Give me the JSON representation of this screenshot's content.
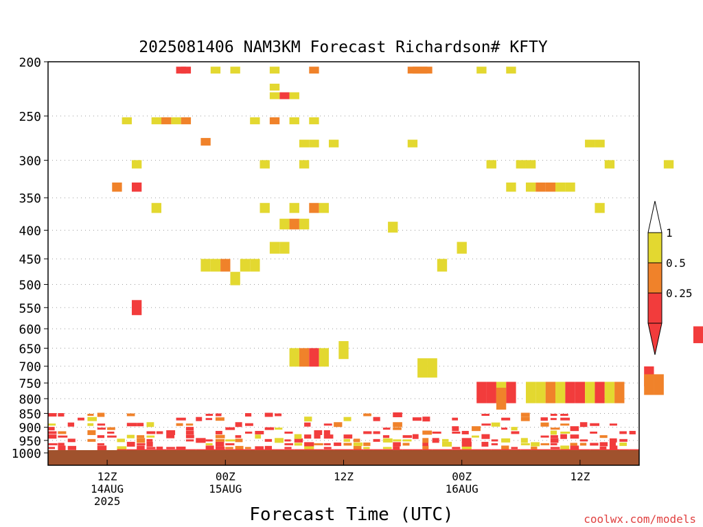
{
  "chart_data": {
    "type": "heatmap",
    "title": "2025081406 NAM3KM Forecast Richardson# KFTY",
    "xlabel": "Forecast Time (UTC)",
    "ylabel": "",
    "watermark": "coolwx.com/models",
    "y_axis": {
      "scale": "log-pressure",
      "range": [
        1000,
        200
      ],
      "tick_labels": [
        "200",
        "250",
        "300",
        "350",
        "400",
        "450",
        "500",
        "550",
        "600",
        "650",
        "700",
        "750",
        "800",
        "850",
        "900",
        "950",
        "1000"
      ],
      "grid": "dotted"
    },
    "x_axis": {
      "range": [
        "2025-08-14T06Z",
        "2025-08-16T18Z"
      ],
      "ticks": [
        {
          "hour": 12,
          "lines": [
            "12Z",
            "14AUG",
            "2025"
          ]
        },
        {
          "hour": 24,
          "lines": [
            "00Z",
            "15AUG"
          ]
        },
        {
          "hour": 36,
          "lines": [
            "12Z"
          ]
        },
        {
          "hour": 48,
          "lines": [
            "00Z",
            "16AUG"
          ]
        },
        {
          "hour": 60,
          "lines": [
            "12Z"
          ]
        }
      ]
    },
    "legend": {
      "placement": "right",
      "labels": [
        "1",
        "0.5",
        "0.25"
      ],
      "bins": [
        {
          "range": [
            0.5,
            1
          ],
          "color": "#e3d830"
        },
        {
          "range": [
            0.25,
            0.5
          ],
          "color": "#f0822a"
        },
        {
          "range": [
            0,
            0.25
          ],
          "color": "#f23c3c"
        }
      ]
    },
    "colors": {
      "low": "#f23c3c",
      "mid": "#f0822a",
      "high": "#e3d830",
      "ground": "#a0522d"
    },
    "cells": [
      {
        "t": 13.5,
        "p": 207,
        "v": 0.1
      },
      {
        "t": 14,
        "p": 207,
        "v": 0.1
      },
      {
        "t": 17,
        "p": 207,
        "v": 0.7
      },
      {
        "t": 19,
        "p": 207,
        "v": 0.7
      },
      {
        "t": 23,
        "p": 207,
        "v": 0.7
      },
      {
        "t": 27,
        "p": 207,
        "v": 0.4
      },
      {
        "t": 37.5,
        "p": 207,
        "v": 0.4
      },
      {
        "t": 38,
        "p": 207,
        "v": 0.4
      },
      {
        "t": 37,
        "p": 207,
        "v": 0.4
      },
      {
        "t": 38.5,
        "p": 207,
        "v": 0.4
      },
      {
        "t": 44,
        "p": 207,
        "v": 0.7
      },
      {
        "t": 47,
        "p": 207,
        "v": 0.7
      },
      {
        "t": 23,
        "p": 222,
        "v": 0.7
      },
      {
        "t": 24,
        "p": 230,
        "v": 0.1
      },
      {
        "t": 25,
        "p": 230,
        "v": 0.7
      },
      {
        "t": 23,
        "p": 230,
        "v": 0.7
      },
      {
        "t": 8,
        "p": 255,
        "v": 0.7
      },
      {
        "t": 11,
        "p": 255,
        "v": 0.7
      },
      {
        "t": 12,
        "p": 255,
        "v": 0.4
      },
      {
        "t": 13,
        "p": 255,
        "v": 0.7
      },
      {
        "t": 14,
        "p": 255,
        "v": 0.4
      },
      {
        "t": 21,
        "p": 255,
        "v": 0.7
      },
      {
        "t": 23,
        "p": 255,
        "v": 0.4
      },
      {
        "t": 25,
        "p": 255,
        "v": 0.7
      },
      {
        "t": 27,
        "p": 255,
        "v": 0.7
      },
      {
        "t": 16,
        "p": 278,
        "v": 0.4
      },
      {
        "t": 26,
        "p": 280,
        "v": 0.7
      },
      {
        "t": 27,
        "p": 280,
        "v": 0.7
      },
      {
        "t": 29,
        "p": 280,
        "v": 0.7
      },
      {
        "t": 37,
        "p": 280,
        "v": 0.7
      },
      {
        "t": 55,
        "p": 280,
        "v": 0.7
      },
      {
        "t": 56,
        "p": 280,
        "v": 0.7
      },
      {
        "t": 9,
        "p": 305,
        "v": 0.7
      },
      {
        "t": 22,
        "p": 305,
        "v": 0.7
      },
      {
        "t": 26,
        "p": 305,
        "v": 0.7
      },
      {
        "t": 45,
        "p": 305,
        "v": 0.7
      },
      {
        "t": 48,
        "p": 305,
        "v": 0.7
      },
      {
        "t": 49,
        "p": 305,
        "v": 0.7
      },
      {
        "t": 57,
        "p": 305,
        "v": 0.7
      },
      {
        "t": 63,
        "p": 305,
        "v": 0.7
      },
      {
        "t": 7,
        "p": 335,
        "v": 0.4
      },
      {
        "t": 9,
        "p": 335,
        "v": 0.1
      },
      {
        "t": 47,
        "p": 335,
        "v": 0.7
      },
      {
        "t": 49,
        "p": 335,
        "v": 0.7
      },
      {
        "t": 50,
        "p": 335,
        "v": 0.4
      },
      {
        "t": 51,
        "p": 335,
        "v": 0.4
      },
      {
        "t": 52,
        "p": 335,
        "v": 0.7
      },
      {
        "t": 53,
        "p": 335,
        "v": 0.7
      },
      {
        "t": 11,
        "p": 365,
        "v": 0.7
      },
      {
        "t": 22,
        "p": 365,
        "v": 0.7
      },
      {
        "t": 25,
        "p": 365,
        "v": 0.7
      },
      {
        "t": 27,
        "p": 365,
        "v": 0.4
      },
      {
        "t": 28,
        "p": 365,
        "v": 0.7
      },
      {
        "t": 56,
        "p": 365,
        "v": 0.7
      },
      {
        "t": 24,
        "p": 390,
        "v": 0.7
      },
      {
        "t": 25,
        "p": 390,
        "v": 0.4
      },
      {
        "t": 26,
        "p": 390,
        "v": 0.7
      },
      {
        "t": 35,
        "p": 395,
        "v": 0.7
      },
      {
        "t": 23,
        "p": 430,
        "v": 0.7
      },
      {
        "t": 24,
        "p": 430,
        "v": 0.7
      },
      {
        "t": 42,
        "p": 430,
        "v": 0.7
      },
      {
        "t": 16,
        "p": 462,
        "v": 0.7
      },
      {
        "t": 17,
        "p": 462,
        "v": 0.7
      },
      {
        "t": 18,
        "p": 462,
        "v": 0.4
      },
      {
        "t": 20,
        "p": 462,
        "v": 0.7
      },
      {
        "t": 21,
        "p": 462,
        "v": 0.7
      },
      {
        "t": 40,
        "p": 462,
        "v": 0.7
      },
      {
        "t": 19,
        "p": 488,
        "v": 0.7
      },
      {
        "t": 9,
        "p": 550,
        "v": 0.1
      },
      {
        "t": 66,
        "p": 615,
        "v": 0.1
      },
      {
        "t": 30,
        "p": 655,
        "v": 0.7
      },
      {
        "t": 25,
        "p": 675,
        "v": 0.7
      },
      {
        "t": 26,
        "p": 675,
        "v": 0.4
      },
      {
        "t": 27,
        "p": 675,
        "v": 0.1
      },
      {
        "t": 28,
        "p": 675,
        "v": 0.7
      },
      {
        "t": 38,
        "p": 705,
        "v": 0.7
      },
      {
        "t": 39,
        "p": 705,
        "v": 0.7
      },
      {
        "t": 61,
        "p": 730,
        "v": 0.1
      },
      {
        "t": 61,
        "p": 755,
        "v": 0.4
      },
      {
        "t": 62,
        "p": 755,
        "v": 0.4
      },
      {
        "t": 44,
        "p": 780,
        "v": 0.1
      },
      {
        "t": 45,
        "p": 780,
        "v": 0.1
      },
      {
        "t": 46,
        "p": 780,
        "v": 0.7
      },
      {
        "t": 47,
        "p": 780,
        "v": 0.1
      },
      {
        "t": 49,
        "p": 780,
        "v": 0.7
      },
      {
        "t": 50,
        "p": 780,
        "v": 0.7
      },
      {
        "t": 51,
        "p": 780,
        "v": 0.4
      },
      {
        "t": 52,
        "p": 780,
        "v": 0.7
      },
      {
        "t": 53,
        "p": 780,
        "v": 0.1
      },
      {
        "t": 54,
        "p": 780,
        "v": 0.1
      },
      {
        "t": 55,
        "p": 780,
        "v": 0.7
      },
      {
        "t": 56,
        "p": 780,
        "v": 0.1
      },
      {
        "t": 57,
        "p": 780,
        "v": 0.7
      },
      {
        "t": 58,
        "p": 780,
        "v": 0.4
      },
      {
        "t": 46,
        "p": 800,
        "v": 0.4
      }
    ]
  }
}
